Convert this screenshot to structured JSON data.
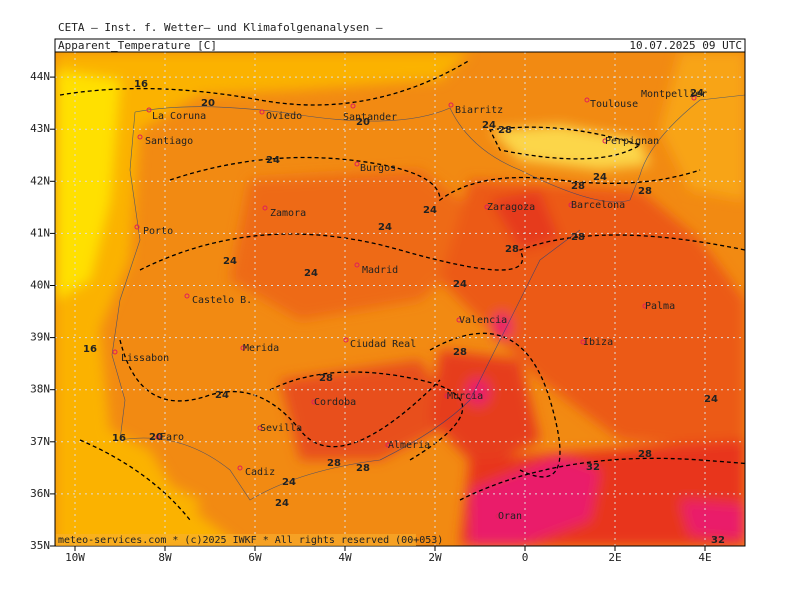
{
  "header": {
    "institute": "CETA — Inst. f. Wetter— und Klimafolgenanalysen —",
    "title": "Apparent_Temperature [C]",
    "date": "10.07.2025 09 UTC",
    "footer": "meteo-services.com * (c)2025 IWKF * All rights reserved (00+053)"
  },
  "map": {
    "lon_ticks": [
      {
        "value": -10,
        "label": "10W"
      },
      {
        "value": -8,
        "label": "8W"
      },
      {
        "value": -6,
        "label": "6W"
      },
      {
        "value": -4,
        "label": "4W"
      },
      {
        "value": -2,
        "label": "2W"
      },
      0,
      {
        "value": 2,
        "label": "2E"
      },
      {
        "value": 4,
        "label": "4E"
      }
    ],
    "lat_ticks": [
      {
        "value": 35,
        "label": "35N"
      },
      {
        "value": 36,
        "label": "36N"
      },
      {
        "value": 37,
        "label": "37N"
      },
      {
        "value": 38,
        "label": "38N"
      },
      {
        "value": 39,
        "label": "39N"
      },
      {
        "value": 40,
        "label": "40N"
      },
      {
        "value": 41,
        "label": "41N"
      },
      {
        "value": 42,
        "label": "42N"
      },
      {
        "value": 43,
        "label": "43N"
      },
      {
        "value": 44,
        "label": "44N"
      }
    ],
    "cities": [
      "La Coruna",
      "Oviedo",
      "Santander",
      "Biarritz",
      "Toulouse",
      "Montpellier",
      "Santiago",
      "Perpignan",
      "Burgos",
      "Zaragoza",
      "Barcelona",
      "Zamora",
      "Porto",
      "Madrid",
      "Castelo B.",
      "Palma",
      "Valencia",
      "Lissabon",
      "Merida",
      "Ciudad Real",
      "Ibiza",
      "Murcia",
      "Cordoba",
      "Sevilla",
      "Faro",
      "Almeria",
      "Cadiz",
      "Oran"
    ],
    "contour_labels": [
      16,
      20,
      20,
      24,
      28,
      24,
      28,
      28,
      24,
      24,
      24,
      28,
      28,
      24,
      24,
      24,
      24,
      28,
      16,
      28,
      24,
      24,
      16,
      20,
      28,
      28,
      28,
      32,
      24,
      24,
      32
    ]
  }
}
